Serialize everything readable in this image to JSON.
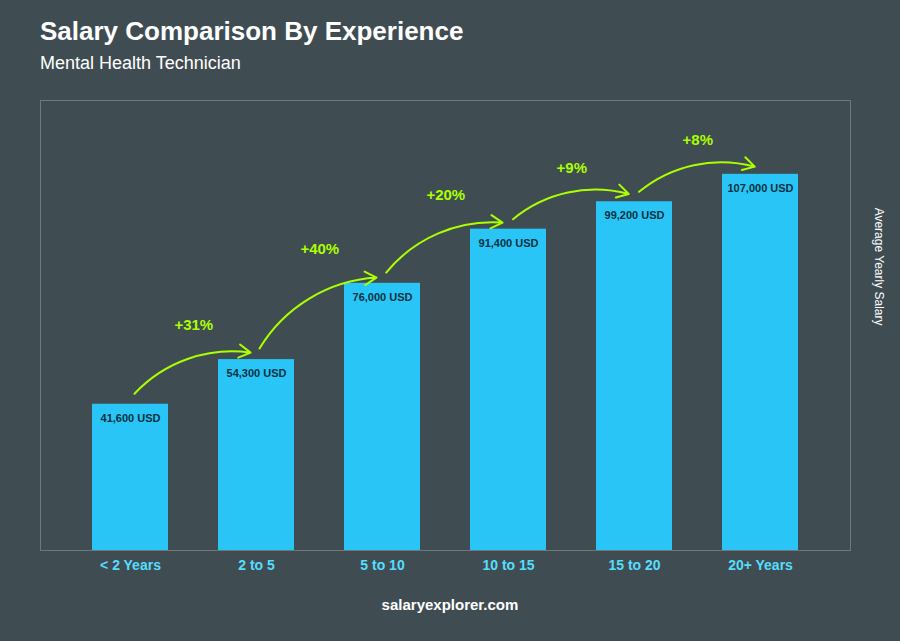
{
  "chart_data": {
    "type": "bar",
    "title": "Salary Comparison By Experience",
    "subtitle": "Mental Health Technician",
    "categories": [
      "< 2 Years",
      "2 to 5",
      "5 to 10",
      "10 to 15",
      "15 to 20",
      "20+ Years"
    ],
    "values": [
      41600,
      54300,
      76000,
      91400,
      99200,
      107000
    ],
    "value_labels": [
      "41,600 USD",
      "54,300 USD",
      "76,000 USD",
      "91,400 USD",
      "99,200 USD",
      "107,000 USD"
    ],
    "data_labels": true,
    "color": "#29c5f6",
    "ylabel": "Average Yearly Salary",
    "ylim": [
      0,
      128000
    ],
    "yticks": [],
    "grid": false,
    "tick_labels": "x",
    "annotations": [
      "+31%",
      "+40%",
      "+20%",
      "+9%",
      "+8%"
    ],
    "caption": "salaryexplorer.com"
  }
}
